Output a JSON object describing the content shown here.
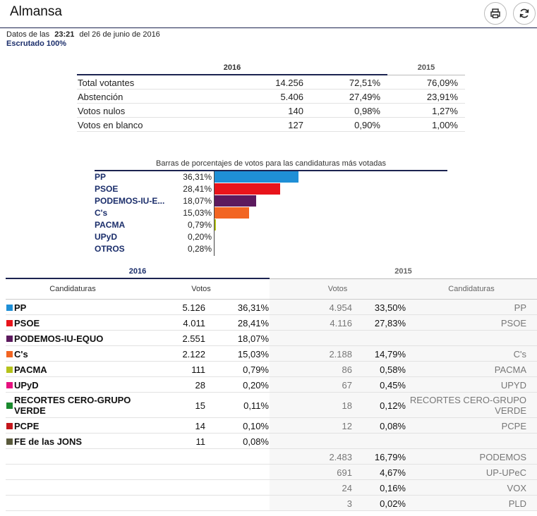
{
  "header": {
    "title": "Almansa",
    "print_icon": "print-icon",
    "refresh_icon": "refresh-icon"
  },
  "meta": {
    "prefix": "Datos de las",
    "time": "23:21",
    "date": "del 26 de junio de 2016",
    "status": "Escrutado 100%"
  },
  "summary": {
    "year_current": "2016",
    "year_previous": "2015",
    "rows": [
      {
        "label": "Total votantes",
        "value": "14.256",
        "pct": "72,51%",
        "pct_prev": "76,09%"
      },
      {
        "label": "Abstención",
        "value": "5.406",
        "pct": "27,49%",
        "pct_prev": "23,91%"
      },
      {
        "label": "Votos nulos",
        "value": "140",
        "pct": "0,98%",
        "pct_prev": "1,27%"
      },
      {
        "label": "Votos en blanco",
        "value": "127",
        "pct": "0,90%",
        "pct_prev": "1,00%"
      }
    ]
  },
  "chart_data": {
    "type": "bar",
    "title": "Barras de porcentajes de votos para las candidaturas más votadas",
    "categories": [
      "PP",
      "PSOE",
      "PODEMOS-IU-E...",
      "C's",
      "PACMA",
      "UPyD",
      "OTROS"
    ],
    "values": [
      36.31,
      28.41,
      18.07,
      15.03,
      0.79,
      0.2,
      0.28
    ],
    "labels": [
      "36,31%",
      "28,41%",
      "18,07%",
      "15,03%",
      "0,79%",
      "0,20%",
      "0,28%"
    ],
    "colors": [
      "#1f8fd6",
      "#e8141b",
      "#5c1a5e",
      "#f26522",
      "#b5c21a",
      "#e6107f",
      "#888888"
    ],
    "xlim": [
      0,
      100
    ]
  },
  "results": {
    "year_current": "2016",
    "year_previous": "2015",
    "col_candidaturas": "Candidaturas",
    "col_votos": "Votos",
    "rows": [
      {
        "name": "PP",
        "color": "#1f8fd6",
        "votes": "5.126",
        "pct": "36,31%",
        "votes15": "4.954",
        "pct15": "33,50%",
        "name15": "PP"
      },
      {
        "name": "PSOE",
        "color": "#e8141b",
        "votes": "4.011",
        "pct": "28,41%",
        "votes15": "4.116",
        "pct15": "27,83%",
        "name15": "PSOE"
      },
      {
        "name": "PODEMOS-IU-EQUO",
        "color": "#5c1a5e",
        "votes": "2.551",
        "pct": "18,07%",
        "votes15": "",
        "pct15": "",
        "name15": ""
      },
      {
        "name": "C's",
        "color": "#f26522",
        "votes": "2.122",
        "pct": "15,03%",
        "votes15": "2.188",
        "pct15": "14,79%",
        "name15": "C's"
      },
      {
        "name": "PACMA",
        "color": "#b5c21a",
        "votes": "111",
        "pct": "0,79%",
        "votes15": "86",
        "pct15": "0,58%",
        "name15": "PACMA"
      },
      {
        "name": "UPyD",
        "color": "#e6107f",
        "votes": "28",
        "pct": "0,20%",
        "votes15": "67",
        "pct15": "0,45%",
        "name15": "UPYD"
      },
      {
        "name": "RECORTES CERO-GRUPO VERDE",
        "color": "#1a8a2e",
        "votes": "15",
        "pct": "0,11%",
        "votes15": "18",
        "pct15": "0,12%",
        "name15": "RECORTES CERO-GRUPO VERDE"
      },
      {
        "name": "PCPE",
        "color": "#c4161c",
        "votes": "14",
        "pct": "0,10%",
        "votes15": "12",
        "pct15": "0,08%",
        "name15": "PCPE"
      },
      {
        "name": "FE de las JONS",
        "color": "#5a5a3c",
        "votes": "11",
        "pct": "0,08%",
        "votes15": "",
        "pct15": "",
        "name15": ""
      },
      {
        "name": "",
        "color": "",
        "votes": "",
        "pct": "",
        "votes15": "2.483",
        "pct15": "16,79%",
        "name15": "PODEMOS"
      },
      {
        "name": "",
        "color": "",
        "votes": "",
        "pct": "",
        "votes15": "691",
        "pct15": "4,67%",
        "name15": "UP-UPeC"
      },
      {
        "name": "",
        "color": "",
        "votes": "",
        "pct": "",
        "votes15": "24",
        "pct15": "0,16%",
        "name15": "VOX"
      },
      {
        "name": "",
        "color": "",
        "votes": "",
        "pct": "",
        "votes15": "3",
        "pct15": "0,02%",
        "name15": "PLD"
      }
    ]
  }
}
